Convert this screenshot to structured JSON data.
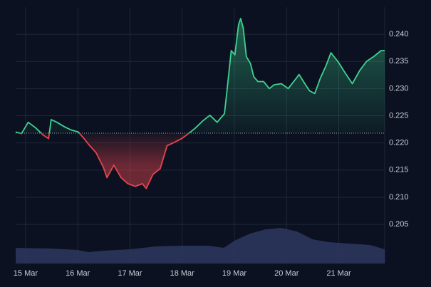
{
  "chart_data": {
    "type": "baseline",
    "x": [
      -0.19,
      -0.08,
      0.05,
      0.19,
      0.33,
      0.44,
      0.49,
      0.6,
      0.74,
      0.87,
      1.01,
      1.12,
      1.21,
      1.35,
      1.49,
      1.56,
      1.69,
      1.83,
      1.96,
      2.1,
      2.24,
      2.31,
      2.44,
      2.58,
      2.71,
      2.85,
      2.99,
      3.12,
      3.26,
      3.4,
      3.53,
      3.67,
      3.81,
      3.87,
      3.94,
      4.01,
      4.08,
      4.12,
      4.17,
      4.23,
      4.31,
      4.37,
      4.45,
      4.56,
      4.67,
      4.76,
      4.9,
      5.03,
      5.17,
      5.24,
      5.35,
      5.44,
      5.54,
      5.65,
      5.76,
      5.85,
      5.99,
      6.13,
      6.26,
      6.4,
      6.53,
      6.67,
      6.81,
      6.88
    ],
    "values": [
      0.222,
      0.2217,
      0.2238,
      0.2228,
      0.2215,
      0.2208,
      0.2243,
      0.2238,
      0.223,
      0.2224,
      0.222,
      0.2208,
      0.2197,
      0.2182,
      0.2155,
      0.2136,
      0.2159,
      0.2136,
      0.2125,
      0.212,
      0.2125,
      0.2116,
      0.2142,
      0.2153,
      0.2195,
      0.2201,
      0.2208,
      0.2217,
      0.2228,
      0.2241,
      0.2251,
      0.2238,
      0.2254,
      0.2307,
      0.237,
      0.2362,
      0.2418,
      0.2429,
      0.2412,
      0.2359,
      0.2346,
      0.2322,
      0.2313,
      0.2313,
      0.23,
      0.2307,
      0.2309,
      0.23,
      0.2317,
      0.2326,
      0.2309,
      0.2296,
      0.2291,
      0.232,
      0.2343,
      0.2366,
      0.2349,
      0.2328,
      0.2309,
      0.2333,
      0.235,
      0.2359,
      0.237,
      0.237
    ],
    "baseline": 0.2218,
    "color_up": "#3fd28f",
    "color_down": "#e5454f",
    "xlim": [
      -0.19,
      6.88
    ],
    "xticks": [
      {
        "value": 0,
        "label": "15 Mar"
      },
      {
        "value": 1,
        "label": "16 Mar"
      },
      {
        "value": 2,
        "label": "17 Mar"
      },
      {
        "value": 3,
        "label": "18 Mar"
      },
      {
        "value": 4,
        "label": "19 Mar"
      },
      {
        "value": 5,
        "label": "20 Mar"
      },
      {
        "value": 6,
        "label": "21 Mar"
      }
    ],
    "ylim": [
      0.1978,
      0.245
    ],
    "yticks": [
      {
        "value": 0.24,
        "label": "0.240"
      },
      0.235,
      {
        "value": 0.23,
        "label": "0.230"
      },
      0.225,
      {
        "value": 0.22,
        "label": "0.220"
      },
      0.215,
      {
        "value": 0.21,
        "label": "0.210"
      },
      0.205
    ],
    "grid": true,
    "volume": {
      "x": [
        -0.19,
        0.5,
        1.0,
        1.2,
        1.5,
        2.0,
        2.5,
        3.0,
        3.5,
        3.8,
        4.0,
        4.3,
        4.6,
        4.9,
        5.2,
        5.5,
        5.8,
        6.2,
        6.6,
        6.88
      ],
      "values": [
        22,
        21,
        19,
        16,
        18,
        20,
        24,
        25,
        25,
        22,
        32,
        42,
        48,
        50,
        45,
        34,
        30,
        28,
        26,
        20
      ],
      "color": "#2e3760"
    }
  }
}
